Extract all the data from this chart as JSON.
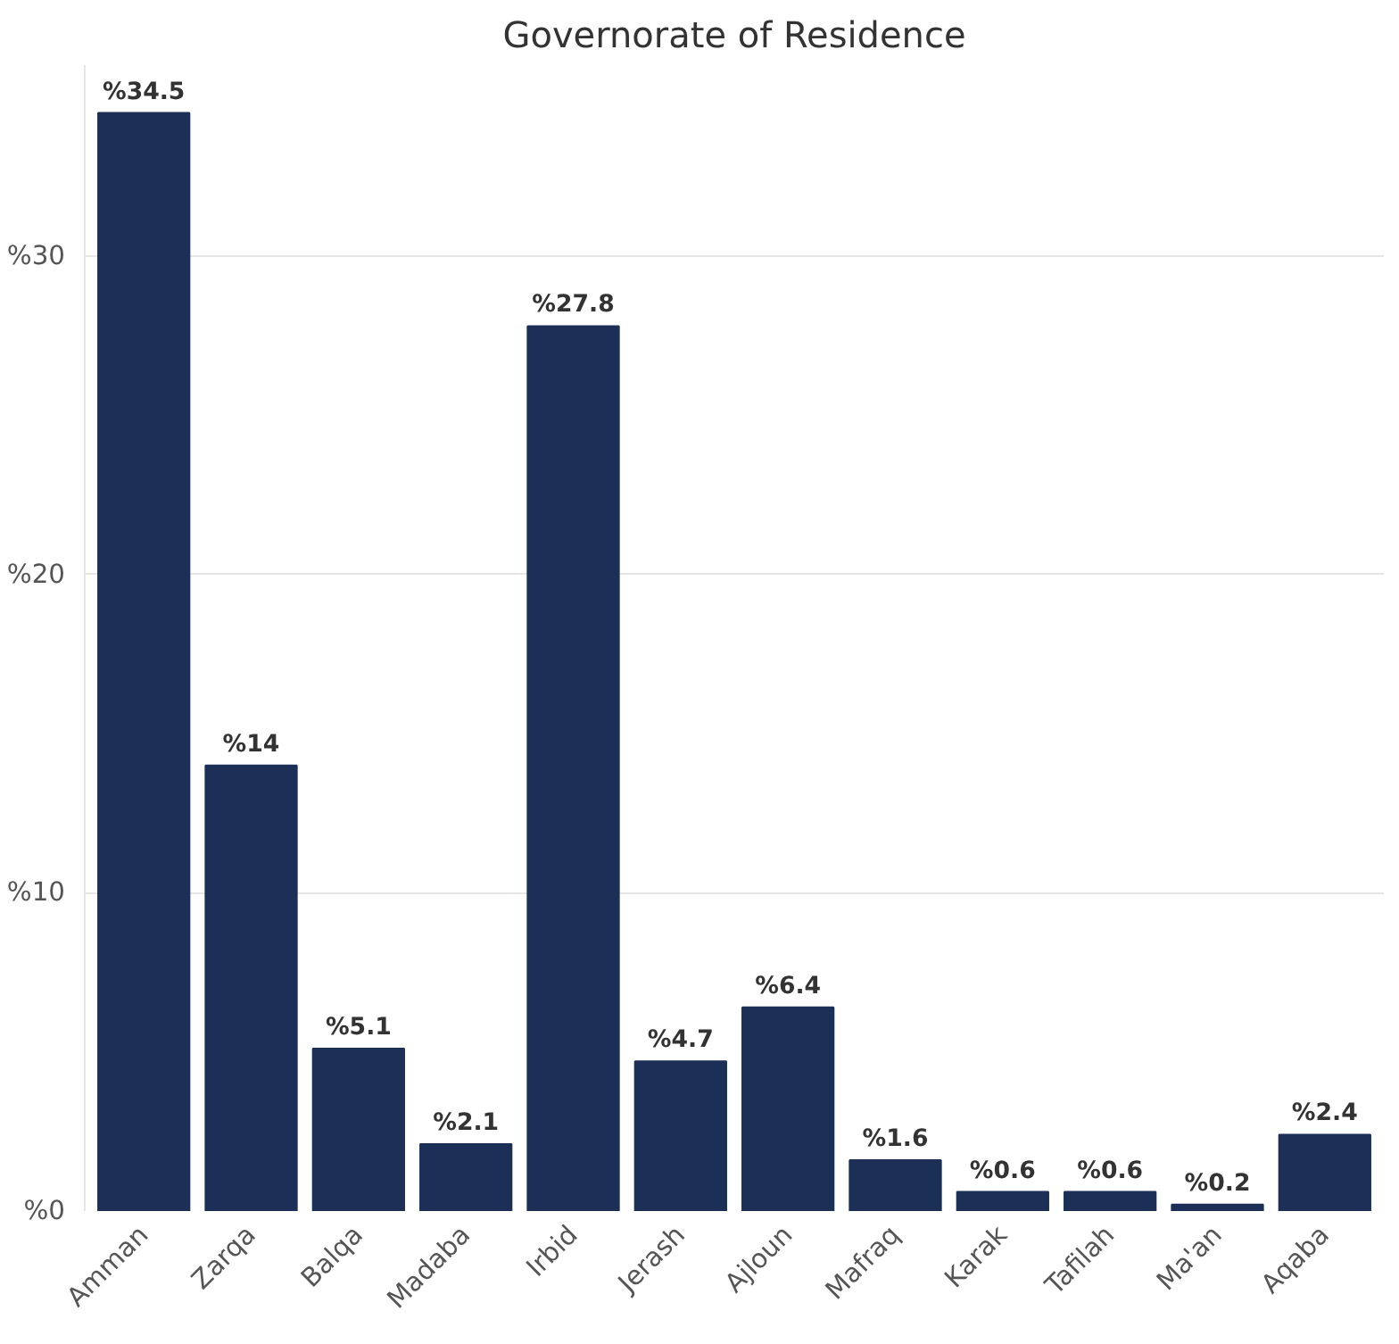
{
  "chart_data": {
    "type": "bar",
    "title": "Governorate of Residence",
    "categories": [
      "Amman",
      "Zarqa",
      "Balqa",
      "Madaba",
      "Irbid",
      "Jerash",
      "Ajloun",
      "Mafraq",
      "Karak",
      "Tafilah",
      "Ma'an",
      "Aqaba"
    ],
    "values": [
      34.5,
      14,
      5.1,
      2.1,
      27.8,
      4.7,
      6.4,
      1.6,
      0.6,
      0.6,
      0.2,
      2.4
    ],
    "value_labels": [
      "%34.5",
      "%14",
      "%5.1",
      "%2.1",
      "%27.8",
      "%4.7",
      "%6.4",
      "%1.6",
      "%0.6",
      "%0.6",
      "%0.2",
      "%2.4"
    ],
    "color": "#1c2f57",
    "ylim": [
      0,
      36
    ],
    "yticks": [
      {
        "value": 0,
        "label": "%0"
      },
      {
        "value": 10,
        "label": "%10"
      },
      {
        "value": 20,
        "label": "%20"
      },
      {
        "value": 30,
        "label": "%30"
      }
    ],
    "grid": "y"
  }
}
